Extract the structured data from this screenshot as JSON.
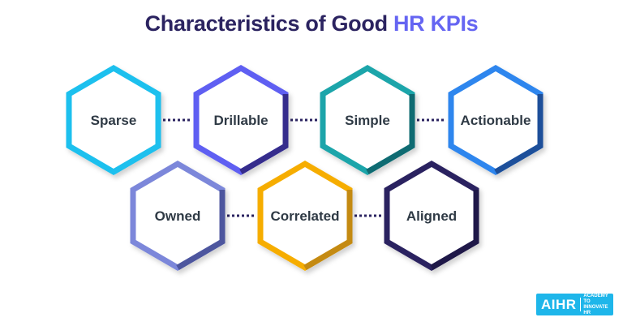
{
  "title": {
    "prefix": "Characteristics of Good ",
    "highlight": "HR KPIs"
  },
  "colors": {
    "title": "#2b2360",
    "highlight": "#6565f2",
    "connector": "#2b2360",
    "label": "#2f3a45"
  },
  "rows": [
    [
      {
        "label": "Sparse",
        "color": "#1ec0ee",
        "shade": "#1ec0ee"
      },
      {
        "label": "Drillable",
        "color": "#5f5ef2",
        "shade": "#352c8c"
      },
      {
        "label": "Simple",
        "color": "#1aa5aa",
        "shade": "#0f6b72"
      },
      {
        "label": "Actionable",
        "color": "#2f86ee",
        "shade": "#1d4f9a"
      }
    ],
    [
      {
        "label": "Owned",
        "color": "#7b87da",
        "shade": "#4d569e"
      },
      {
        "label": "Correlated",
        "color": "#f6ad00",
        "shade": "#c48a12"
      },
      {
        "label": "Aligned",
        "color": "#2c2260",
        "shade": "#1f1848"
      }
    ]
  ],
  "logo": {
    "mark": "AIHR",
    "tagline": "ACADEMY TO INNOVATE HR"
  }
}
